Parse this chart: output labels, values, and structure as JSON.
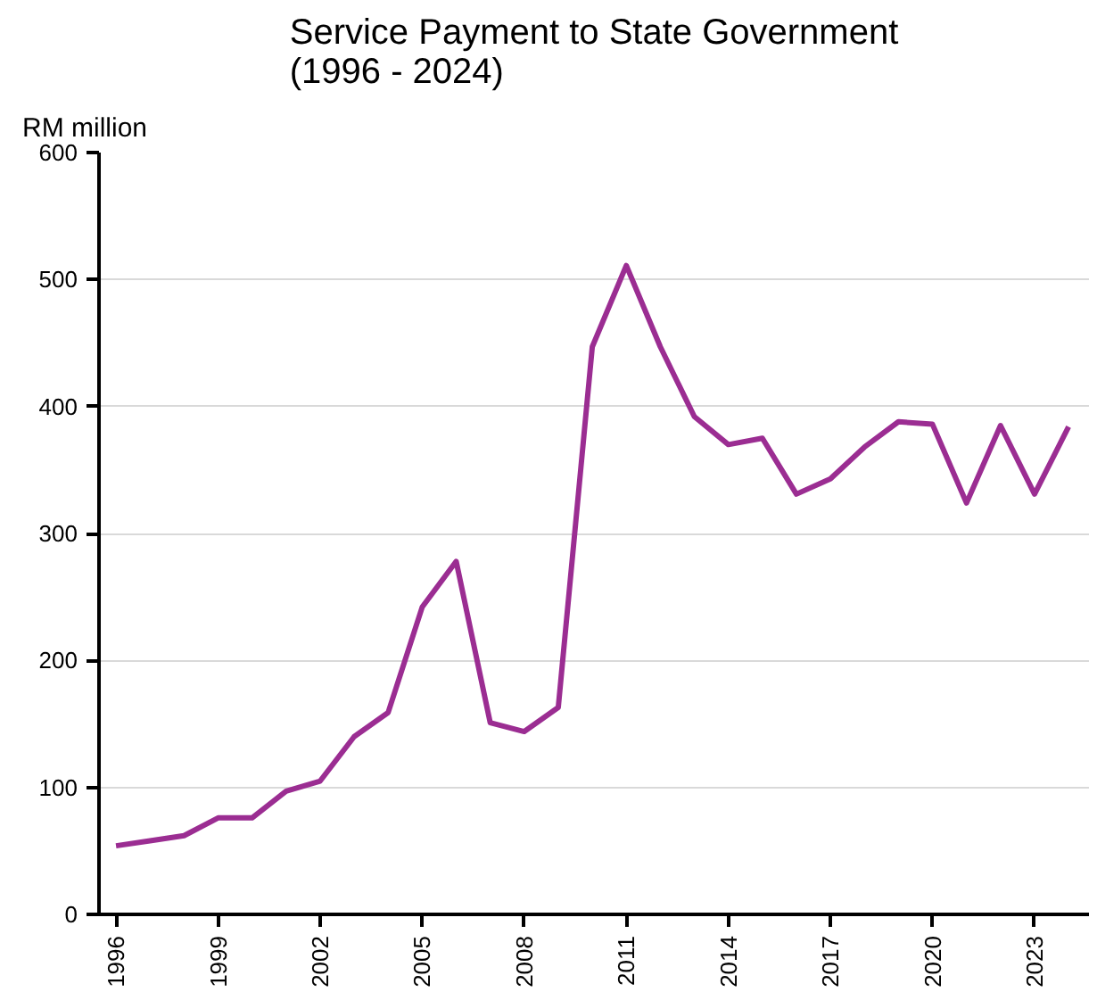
{
  "chart_data": {
    "type": "line",
    "title": "Service Payment to State Government\n(1996 - 2024)",
    "ylabel": "RM million",
    "x": [
      1996,
      1997,
      1998,
      1999,
      2000,
      2001,
      2002,
      2003,
      2004,
      2005,
      2006,
      2007,
      2008,
      2009,
      2010,
      2011,
      2012,
      2013,
      2014,
      2015,
      2016,
      2017,
      2018,
      2019,
      2020,
      2021,
      2022,
      2023,
      2024
    ],
    "series": [
      {
        "color": "#9b2d92",
        "values": [
          54,
          58,
          62,
          76,
          76,
          97,
          105,
          140,
          159,
          242,
          278,
          151,
          144,
          163,
          447,
          511,
          447,
          392,
          370,
          375,
          331,
          343,
          368,
          388,
          386,
          324,
          385,
          331,
          384
        ]
      }
    ],
    "xlim": [
      1995.5,
      2024.6
    ],
    "xticks": [
      1996,
      1999,
      2002,
      2005,
      2008,
      2011,
      2014,
      2017,
      2020,
      2023
    ],
    "ylim": [
      0,
      600
    ],
    "yticks": [
      0,
      100,
      200,
      300,
      400,
      500,
      600
    ],
    "grid": "y",
    "line_style": "solid"
  }
}
